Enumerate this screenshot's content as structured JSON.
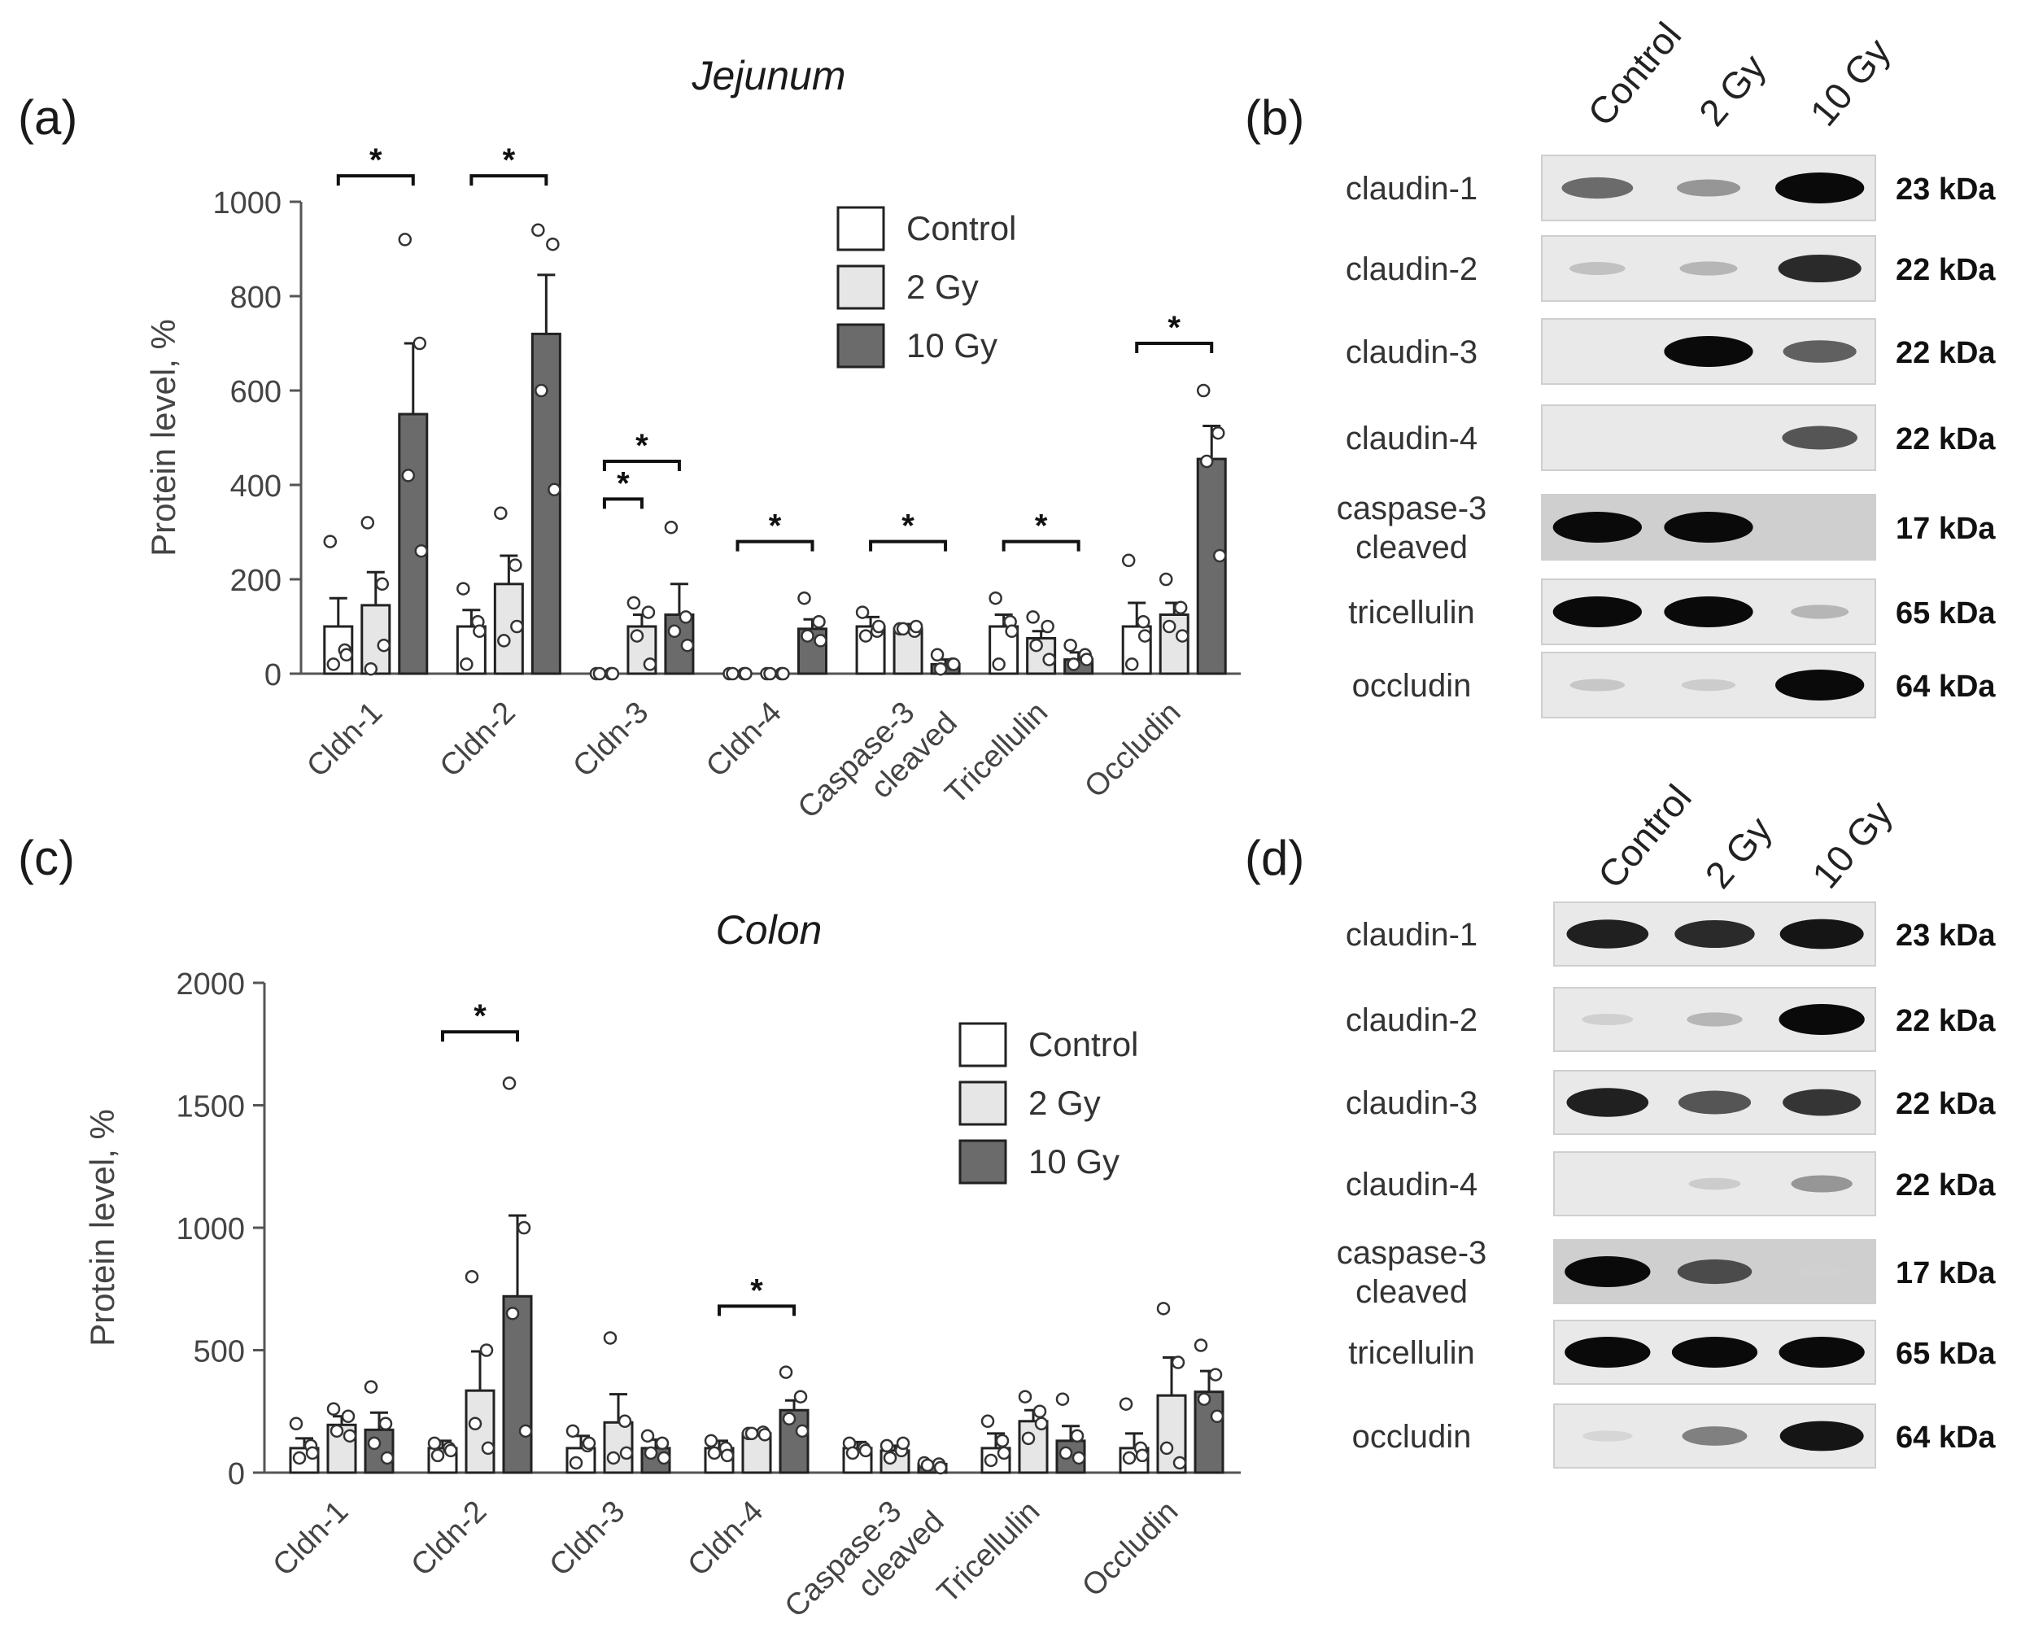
{
  "panels": {
    "a": {
      "letter": "(a)"
    },
    "b": {
      "letter": "(b)"
    },
    "c": {
      "letter": "(c)"
    },
    "d": {
      "letter": "(d)"
    }
  },
  "colors": {
    "control": "#ffffff",
    "gy2": "#e6e6e6",
    "gy10": "#6b6b6b",
    "axis": "#555555",
    "text": "#1a1a1a"
  },
  "chart_data": [
    {
      "panel": "(a)",
      "type": "bar",
      "title": "Jejunum",
      "ylabel": "Protein level, %",
      "xlabel": "",
      "ylim": [
        0,
        1000
      ],
      "yticks": [
        0,
        200,
        400,
        600,
        800,
        1000
      ],
      "grid": false,
      "legend": "top-right",
      "categories": [
        "Cldn-1",
        "Cldn-2",
        "Cldn-3",
        "Cldn-4",
        "Caspase-3\ncleaved",
        "Tricellulin",
        "Occludin"
      ],
      "series": [
        {
          "name": "Control",
          "values": [
            100,
            100,
            0,
            0,
            100,
            100,
            100
          ],
          "errors": [
            60,
            35,
            0,
            0,
            20,
            25,
            50
          ],
          "points": [
            [
              280,
              50,
              20,
              40
            ],
            [
              180,
              110,
              20,
              90
            ],
            [
              0,
              0,
              0,
              0
            ],
            [
              0,
              0,
              0,
              0
            ],
            [
              130,
              90,
              80,
              100
            ],
            [
              160,
              110,
              20,
              90
            ],
            [
              240,
              110,
              20,
              80
            ]
          ]
        },
        {
          "name": "2 Gy",
          "values": [
            145,
            190,
            100,
            0,
            95,
            75,
            125
          ],
          "errors": [
            70,
            60,
            25,
            0,
            10,
            15,
            25
          ],
          "points": [
            [
              320,
              190,
              10,
              60
            ],
            [
              340,
              230,
              70,
              100
            ],
            [
              150,
              130,
              80,
              20
            ],
            [
              0,
              0,
              0,
              0
            ],
            [
              95,
              90,
              95,
              100
            ],
            [
              120,
              100,
              60,
              30
            ],
            [
              200,
              140,
              100,
              80
            ]
          ]
        },
        {
          "name": "10 Gy",
          "values": [
            550,
            720,
            125,
            95,
            20,
            30,
            455
          ],
          "errors": [
            150,
            125,
            65,
            20,
            10,
            15,
            70
          ],
          "points": [
            [
              920,
              700,
              420,
              260
            ],
            [
              940,
              910,
              600,
              390
            ],
            [
              310,
              120,
              90,
              60
            ],
            [
              160,
              110,
              80,
              70
            ],
            [
              40,
              20,
              10,
              20
            ],
            [
              60,
              40,
              20,
              30
            ],
            [
              600,
              510,
              450,
              250
            ]
          ]
        }
      ],
      "significance": [
        {
          "from": [
            0,
            0
          ],
          "to": [
            0,
            2
          ],
          "label": "*",
          "y": 1055
        },
        {
          "from": [
            1,
            0
          ],
          "to": [
            1,
            2
          ],
          "label": "*",
          "y": 1055
        },
        {
          "from": [
            2,
            0
          ],
          "to": [
            2,
            1
          ],
          "label": "*",
          "y": 370
        },
        {
          "from": [
            2,
            0
          ],
          "to": [
            2,
            2
          ],
          "label": "*",
          "y": 450
        },
        {
          "from": [
            3,
            0
          ],
          "to": [
            3,
            2
          ],
          "label": "*",
          "y": 280
        },
        {
          "from": [
            4,
            0
          ],
          "to": [
            4,
            2
          ],
          "label": "*",
          "y": 280
        },
        {
          "from": [
            5,
            0
          ],
          "to": [
            5,
            2
          ],
          "label": "*",
          "y": 280
        },
        {
          "from": [
            6,
            0
          ],
          "to": [
            6,
            2
          ],
          "label": "*",
          "y": 700
        }
      ]
    },
    {
      "panel": "(c)",
      "type": "bar",
      "title": "Colon",
      "ylabel": "Protein level, %",
      "xlabel": "",
      "ylim": [
        0,
        2000
      ],
      "yticks": [
        0,
        500,
        1000,
        1500,
        2000
      ],
      "grid": false,
      "legend": "top-right",
      "categories": [
        "Cldn-1",
        "Cldn-2",
        "Cldn-3",
        "Cldn-4",
        "Caspase-3\ncleaved",
        "Tricellulin",
        "Occludin"
      ],
      "series": [
        {
          "name": "Control",
          "values": [
            100,
            100,
            100,
            100,
            100,
            100,
            100
          ],
          "errors": [
            40,
            30,
            50,
            30,
            25,
            60,
            60
          ],
          "points": [
            [
              200,
              110,
              60,
              80
            ],
            [
              120,
              100,
              70,
              90
            ],
            [
              170,
              110,
              40,
              120
            ],
            [
              130,
              100,
              80,
              70
            ],
            [
              120,
              100,
              80,
              90
            ],
            [
              210,
              130,
              50,
              80
            ],
            [
              280,
              100,
              60,
              70
            ]
          ]
        },
        {
          "name": "2 Gy",
          "values": [
            195,
            335,
            205,
            160,
            90,
            210,
            315
          ],
          "errors": [
            35,
            160,
            115,
            10,
            20,
            45,
            155
          ],
          "points": [
            [
              260,
              230,
              170,
              150
            ],
            [
              800,
              500,
              200,
              100
            ],
            [
              550,
              210,
              60,
              80
            ],
            [
              160,
              165,
              160,
              155
            ],
            [
              110,
              90,
              60,
              120
            ],
            [
              310,
              250,
              140,
              200
            ],
            [
              670,
              450,
              100,
              40
            ]
          ]
        },
        {
          "name": "10 Gy",
          "values": [
            175,
            720,
            100,
            255,
            35,
            130,
            330
          ],
          "errors": [
            70,
            330,
            35,
            40,
            8,
            60,
            85
          ],
          "points": [
            [
              350,
              200,
              120,
              60
            ],
            [
              1590,
              1000,
              650,
              170
            ],
            [
              150,
              120,
              80,
              60
            ],
            [
              410,
              310,
              220,
              170
            ],
            [
              40,
              35,
              30,
              20
            ],
            [
              300,
              150,
              80,
              60
            ],
            [
              520,
              400,
              300,
              230
            ]
          ]
        }
      ],
      "significance": [
        {
          "from": [
            1,
            0
          ],
          "to": [
            1,
            2
          ],
          "label": "*",
          "y": 1800
        },
        {
          "from": [
            3,
            0
          ],
          "to": [
            3,
            2
          ],
          "label": "*",
          "y": 680
        }
      ]
    }
  ],
  "blots": [
    {
      "panel": "(b)",
      "lanes": [
        "Control",
        "2 Gy",
        "10 Gy"
      ],
      "rows": [
        {
          "protein": [
            "claudin-1"
          ],
          "kda": "23 kDa",
          "bands": [
            0.55,
            0.35,
            1.0
          ]
        },
        {
          "protein": [
            "claudin-2"
          ],
          "kda": "22 kDa",
          "bands": [
            0.15,
            0.2,
            0.85
          ]
        },
        {
          "protein": [
            "claudin-3"
          ],
          "kda": "22 kDa",
          "bands": [
            0.0,
            1.0,
            0.6
          ]
        },
        {
          "protein": [
            "claudin-4"
          ],
          "kda": "22 kDa",
          "bands": [
            0.0,
            0.0,
            0.65
          ]
        },
        {
          "protein": [
            "caspase-3",
            "cleaved"
          ],
          "kda": "17 kDa",
          "bands": [
            1.0,
            1.0,
            0.0
          ]
        },
        {
          "protein": [
            "tricellulin"
          ],
          "kda": "65 kDa",
          "bands": [
            1.0,
            1.0,
            0.2
          ]
        },
        {
          "protein": [
            "occludin"
          ],
          "kda": "64 kDa",
          "bands": [
            0.12,
            0.1,
            1.0
          ]
        }
      ]
    },
    {
      "panel": "(d)",
      "lanes": [
        "Control",
        "2 Gy",
        "10 Gy"
      ],
      "rows": [
        {
          "protein": [
            "claudin-1"
          ],
          "kda": "23 kDa",
          "bands": [
            0.9,
            0.85,
            0.95
          ]
        },
        {
          "protein": [
            "claudin-2"
          ],
          "kda": "22 kDa",
          "bands": [
            0.08,
            0.2,
            1.0
          ]
        },
        {
          "protein": [
            "claudin-3"
          ],
          "kda": "22 kDa",
          "bands": [
            0.9,
            0.65,
            0.8
          ]
        },
        {
          "protein": [
            "claudin-4"
          ],
          "kda": "22 kDa",
          "bands": [
            0.0,
            0.1,
            0.35
          ]
        },
        {
          "protein": [
            "caspase-3",
            "cleaved"
          ],
          "kda": "17 kDa",
          "bands": [
            1.0,
            0.7,
            0.08
          ]
        },
        {
          "protein": [
            "tricellulin"
          ],
          "kda": "65 kDa",
          "bands": [
            1.0,
            1.0,
            1.0
          ]
        },
        {
          "protein": [
            "occludin"
          ],
          "kda": "64 kDa",
          "bands": [
            0.05,
            0.45,
            0.95
          ]
        }
      ]
    }
  ]
}
